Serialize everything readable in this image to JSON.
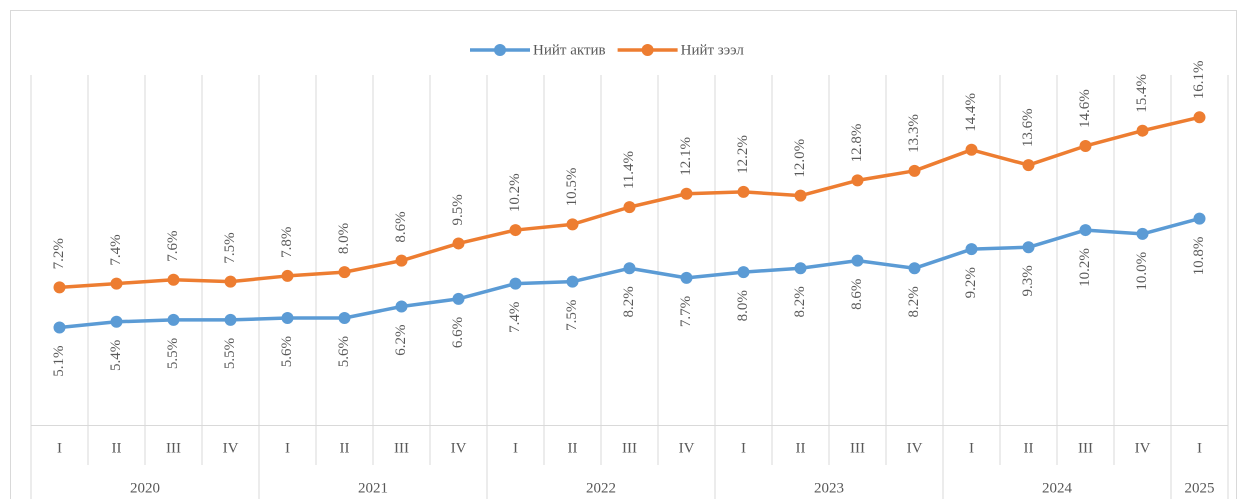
{
  "chart_data": {
    "type": "line",
    "category_groups": [
      {
        "label": "2020",
        "categories": [
          "I",
          "II",
          "III",
          "IV"
        ]
      },
      {
        "label": "2021",
        "categories": [
          "I",
          "II",
          "III",
          "IV"
        ]
      },
      {
        "label": "2022",
        "categories": [
          "I",
          "II",
          "III",
          "IV"
        ]
      },
      {
        "label": "2023",
        "categories": [
          "I",
          "II",
          "III",
          "IV"
        ]
      },
      {
        "label": "2024",
        "categories": [
          "I",
          "II",
          "III",
          "IV"
        ]
      },
      {
        "label": "2025",
        "categories": [
          "I"
        ]
      }
    ],
    "series": [
      {
        "name": "Нийт актив",
        "color": "#5b9bd5",
        "values": [
          5.1,
          5.4,
          5.5,
          5.5,
          5.6,
          5.6,
          6.2,
          6.6,
          7.4,
          7.5,
          8.2,
          7.7,
          8.0,
          8.2,
          8.6,
          8.2,
          9.2,
          9.3,
          10.2,
          10.0,
          10.8
        ],
        "value_labels": [
          "5.1%",
          "5.4%",
          "5.5%",
          "5.5%",
          "5.6%",
          "5.6%",
          "6.2%",
          "6.6%",
          "7.4%",
          "7.5%",
          "8.2%",
          "7.7%",
          "8.0%",
          "8.2%",
          "8.6%",
          "8.2%",
          "9.2%",
          "9.3%",
          "10.2%",
          "10.0%",
          "10.8%"
        ]
      },
      {
        "name": "Нийт зээл",
        "color": "#ed7d31",
        "values": [
          7.2,
          7.4,
          7.6,
          7.5,
          7.8,
          8.0,
          8.6,
          9.5,
          10.2,
          10.5,
          11.4,
          12.1,
          12.2,
          12.0,
          12.8,
          13.3,
          14.4,
          13.6,
          14.6,
          15.4,
          16.1
        ],
        "value_labels": [
          "7.2%",
          "7.4%",
          "7.6%",
          "7.5%",
          "7.8%",
          "8.0%",
          "8.6%",
          "9.5%",
          "10.2%",
          "10.5%",
          "11.4%",
          "12.1%",
          "12.2%",
          "12.0%",
          "12.8%",
          "13.3%",
          "14.4%",
          "13.6%",
          "14.6%",
          "15.4%",
          "16.1%"
        ]
      }
    ],
    "ylim": [
      0,
      18
    ],
    "legend": "top"
  }
}
